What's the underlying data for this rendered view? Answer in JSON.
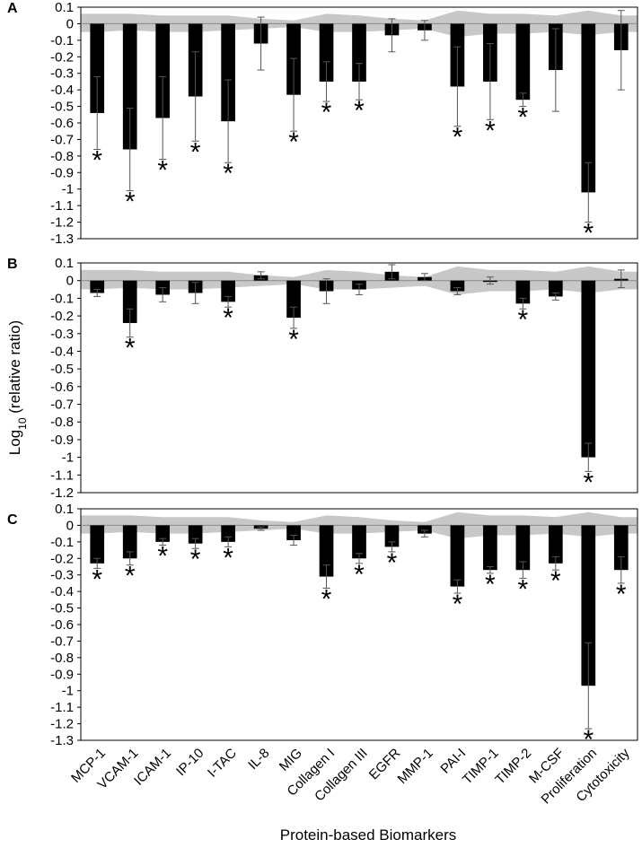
{
  "figure": {
    "ylabel_base": "Log",
    "ylabel_sub": "10",
    "ylabel_rest": " (relative ratio)",
    "xlabel": "Protein-based Biomarkers",
    "star_symbol": "*"
  },
  "colors": {
    "bar": "#000000",
    "band": "#c8c8c8",
    "error": "#555555",
    "axis": "#000000"
  },
  "chart_data": [
    {
      "type": "bar",
      "panel_label": "A",
      "ylim": [
        -1.3,
        0.1
      ],
      "yticks": [
        0.1,
        0,
        -0.1,
        -0.2,
        -0.3,
        -0.4,
        -0.5,
        -0.6,
        -0.7,
        -0.8,
        -0.9,
        -1,
        -1.1,
        -1.2,
        -1.3
      ],
      "categories": [
        "MCP-1",
        "VCAM-1",
        "ICAM-1",
        "IP-10",
        "I-TAC",
        "IL-8",
        "MIG",
        "Collagen I",
        "Collagen III",
        "EGFR",
        "MMP-1",
        "PAI-I",
        "TIMP-1",
        "TIMP-2",
        "M-CSF",
        "Proliferation",
        "Cytotoxicity"
      ],
      "values": [
        -0.54,
        -0.76,
        -0.57,
        -0.44,
        -0.59,
        -0.12,
        -0.43,
        -0.35,
        -0.35,
        -0.07,
        -0.04,
        -0.38,
        -0.35,
        -0.46,
        -0.28,
        -1.02,
        -0.16
      ],
      "errors": [
        0.22,
        0.25,
        0.25,
        0.27,
        0.25,
        0.16,
        0.22,
        0.12,
        0.11,
        0.1,
        0.06,
        0.24,
        0.23,
        0.04,
        0.25,
        0.18,
        0.24
      ],
      "significant": [
        true,
        true,
        true,
        true,
        true,
        false,
        true,
        true,
        true,
        false,
        false,
        true,
        true,
        true,
        false,
        true,
        false
      ],
      "band_upper": [
        0.06,
        0.06,
        0.05,
        0.05,
        0.05,
        0.03,
        0.02,
        0.06,
        0.05,
        0.03,
        0.02,
        0.08,
        0.06,
        0.06,
        0.05,
        0.08,
        0.05
      ],
      "band_lower": [
        -0.05,
        -0.04,
        -0.05,
        -0.05,
        -0.04,
        -0.03,
        -0.02,
        -0.05,
        -0.05,
        -0.04,
        -0.03,
        -0.08,
        -0.06,
        -0.06,
        -0.05,
        -0.07,
        -0.05
      ]
    },
    {
      "type": "bar",
      "panel_label": "B",
      "ylim": [
        -1.2,
        0.1
      ],
      "yticks": [
        0.1,
        0,
        -0.1,
        -0.2,
        -0.3,
        -0.4,
        -0.5,
        -0.6,
        -0.7,
        -0.8,
        -0.9,
        -1,
        -1.1,
        -1.2
      ],
      "categories": [
        "MCP-1",
        "VCAM-1",
        "ICAM-1",
        "IP-10",
        "I-TAC",
        "IL-8",
        "MIG",
        "Collagen I",
        "Collagen III",
        "EGFR",
        "MMP-1",
        "PAI-I",
        "TIMP-1",
        "TIMP-2",
        "M-CSF",
        "Proliferation",
        "Cytotoxicity"
      ],
      "values": [
        -0.07,
        -0.24,
        -0.08,
        -0.07,
        -0.12,
        0.03,
        -0.21,
        -0.06,
        -0.05,
        0.05,
        0.02,
        -0.06,
        0.0,
        -0.13,
        -0.09,
        -1.0,
        0.01
      ],
      "errors": [
        0.02,
        0.08,
        0.04,
        0.06,
        0.03,
        0.02,
        0.06,
        0.07,
        0.03,
        0.04,
        0.02,
        0.02,
        0.02,
        0.03,
        0.02,
        0.08,
        0.05
      ],
      "significant": [
        false,
        true,
        false,
        false,
        true,
        false,
        true,
        false,
        false,
        false,
        false,
        false,
        false,
        true,
        false,
        true,
        false
      ],
      "band_upper": [
        0.06,
        0.06,
        0.05,
        0.05,
        0.05,
        0.03,
        0.02,
        0.06,
        0.05,
        0.03,
        0.02,
        0.08,
        0.06,
        0.06,
        0.05,
        0.08,
        0.05
      ],
      "band_lower": [
        -0.05,
        -0.04,
        -0.05,
        -0.05,
        -0.04,
        -0.03,
        -0.02,
        -0.05,
        -0.05,
        -0.04,
        -0.03,
        -0.08,
        -0.06,
        -0.06,
        -0.05,
        -0.07,
        -0.05
      ]
    },
    {
      "type": "bar",
      "panel_label": "C",
      "ylim": [
        -1.3,
        0.1
      ],
      "yticks": [
        0.1,
        0,
        -0.1,
        -0.2,
        -0.3,
        -0.4,
        -0.5,
        -0.6,
        -0.7,
        -0.8,
        -0.9,
        -1,
        -1.1,
        -1.2,
        -1.3
      ],
      "categories": [
        "MCP-1",
        "VCAM-1",
        "ICAM-1",
        "IP-10",
        "I-TAC",
        "IL-8",
        "MIG",
        "Collagen I",
        "Collagen III",
        "EGFR",
        "MMP-1",
        "PAI-I",
        "TIMP-1",
        "TIMP-2",
        "M-CSF",
        "Proliferation",
        "Cytotoxicity"
      ],
      "values": [
        -0.23,
        -0.2,
        -0.1,
        -0.11,
        -0.1,
        -0.02,
        -0.09,
        -0.31,
        -0.2,
        -0.13,
        -0.05,
        -0.37,
        -0.27,
        -0.27,
        -0.23,
        -0.97,
        -0.27
      ],
      "errors": [
        0.03,
        0.04,
        0.02,
        0.03,
        0.03,
        0.01,
        0.03,
        0.07,
        0.03,
        0.03,
        0.02,
        0.04,
        0.02,
        0.05,
        0.04,
        0.26,
        0.08
      ],
      "significant": [
        true,
        true,
        true,
        true,
        true,
        false,
        false,
        true,
        true,
        true,
        false,
        true,
        true,
        true,
        true,
        true,
        true
      ],
      "band_upper": [
        0.06,
        0.06,
        0.05,
        0.05,
        0.05,
        0.03,
        0.02,
        0.06,
        0.05,
        0.03,
        0.02,
        0.08,
        0.06,
        0.06,
        0.05,
        0.08,
        0.05
      ],
      "band_lower": [
        -0.05,
        -0.04,
        -0.05,
        -0.05,
        -0.04,
        -0.03,
        -0.02,
        -0.05,
        -0.05,
        -0.04,
        -0.03,
        -0.08,
        -0.06,
        -0.06,
        -0.05,
        -0.07,
        -0.05
      ]
    }
  ]
}
